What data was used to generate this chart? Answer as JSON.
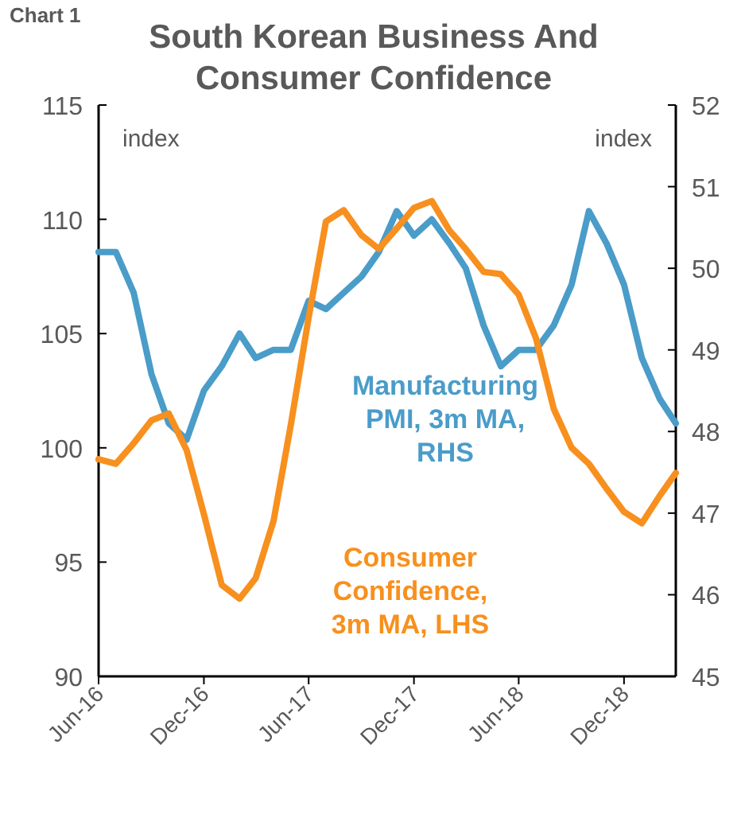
{
  "chart_data": {
    "type": "line",
    "title": "South Korean Business And Consumer Confidence",
    "ylabel": "index",
    "y2label": "index",
    "annotations": [
      "Chart 1"
    ],
    "x": [
      "2016-06",
      "2016-07",
      "2016-08",
      "2016-09",
      "2016-10",
      "2016-11",
      "2016-12",
      "2017-01",
      "2017-02",
      "2017-03",
      "2017-04",
      "2017-05",
      "2017-06",
      "2017-07",
      "2017-08",
      "2017-09",
      "2017-10",
      "2017-11",
      "2017-12",
      "2018-01",
      "2018-02",
      "2018-03",
      "2018-04",
      "2018-05",
      "2018-06",
      "2018-07",
      "2018-08",
      "2018-09",
      "2018-10",
      "2018-11",
      "2018-12",
      "2019-01",
      "2019-02",
      "2019-03"
    ],
    "series": [
      {
        "name": "Manufacturing PMI, 3m MA, RHS",
        "color": "#4a9cc9",
        "axis": "y2",
        "values": [
          50.2,
          50.2,
          49.7,
          48.7,
          48.1,
          47.9,
          48.5,
          48.8,
          49.2,
          48.9,
          49.0,
          49.0,
          49.6,
          49.5,
          49.7,
          49.9,
          50.2,
          50.7,
          50.4,
          50.6,
          50.3,
          50.0,
          49.3,
          48.8,
          49.0,
          49.0,
          49.3,
          49.8,
          50.7,
          50.3,
          49.8,
          48.9,
          48.4,
          48.1
        ]
      },
      {
        "name": "Consumer Confidence, 3m MA, LHS",
        "color": "#f7901e",
        "values": [
          99.5,
          99.3,
          100.2,
          101.2,
          101.5,
          99.9,
          97.1,
          94.0,
          93.4,
          94.3,
          96.8,
          101.0,
          105.7,
          109.9,
          110.4,
          109.3,
          108.7,
          109.6,
          110.5,
          110.8,
          109.5,
          108.7,
          107.7,
          107.6,
          106.7,
          104.8,
          101.7,
          100.0,
          99.3,
          98.2,
          97.2,
          96.7,
          97.9,
          98.9
        ]
      }
    ],
    "xlim": [
      "2016-06",
      "2019-03"
    ],
    "xticks": [
      {
        "value": "2016-06",
        "label": "Jun-16"
      },
      {
        "value": "2016-12",
        "label": "Dec-16"
      },
      {
        "value": "2017-06",
        "label": "Jun-17"
      },
      {
        "value": "2017-12",
        "label": "Dec-17"
      },
      {
        "value": "2018-06",
        "label": "Jun-18"
      },
      {
        "value": "2018-12",
        "label": "Dec-18"
      }
    ],
    "ylim": [
      90,
      115
    ],
    "yticks": [
      90,
      95,
      100,
      105,
      110,
      115
    ],
    "y2lim": [
      45,
      52
    ],
    "y2ticks": [
      45,
      46,
      47,
      48,
      49,
      50,
      51,
      52
    ],
    "grid": false,
    "marker": "none",
    "line_style": "solid"
  }
}
